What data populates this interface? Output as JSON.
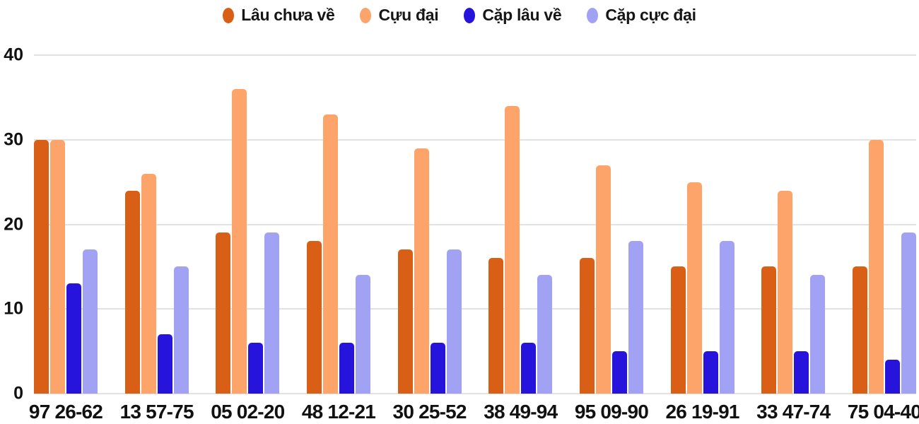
{
  "colors": {
    "series_dark_orange": "#d85f15",
    "series_light_orange": "#fda46b",
    "series_blue": "#2613dc",
    "series_lavender": "#a1a2f4",
    "gridline": "#e2e2e2",
    "text": "#111111",
    "background": "#ffffff"
  },
  "chart_data": {
    "type": "bar",
    "title": "",
    "xlabel": "",
    "ylabel": "",
    "categories": [
      "97 26-62",
      "13 57-75",
      "05 02-20",
      "48 12-21",
      "30 25-52",
      "38 49-94",
      "95 09-90",
      "26 19-91",
      "33 47-74",
      "75 04-40"
    ],
    "series": [
      {
        "name": "Lâu chưa về",
        "color": "#d85f15",
        "values": [
          30,
          24,
          19,
          18,
          17,
          16,
          16,
          15,
          15,
          15
        ]
      },
      {
        "name": "Cựu đại",
        "color": "#fda46b",
        "values": [
          30,
          26,
          36,
          33,
          29,
          34,
          27,
          25,
          24,
          30
        ]
      },
      {
        "name": "Cặp lâu về",
        "color": "#2613dc",
        "values": [
          13,
          7,
          6,
          6,
          6,
          6,
          5,
          5,
          5,
          4
        ]
      },
      {
        "name": "Cặp cực đại",
        "color": "#a1a2f4",
        "values": [
          17,
          15,
          19,
          14,
          17,
          14,
          18,
          18,
          14,
          19
        ]
      }
    ],
    "ylim": [
      0,
      40
    ],
    "yticks": [
      0,
      10,
      20,
      30,
      40
    ],
    "grid": true,
    "legend_position": "top"
  }
}
